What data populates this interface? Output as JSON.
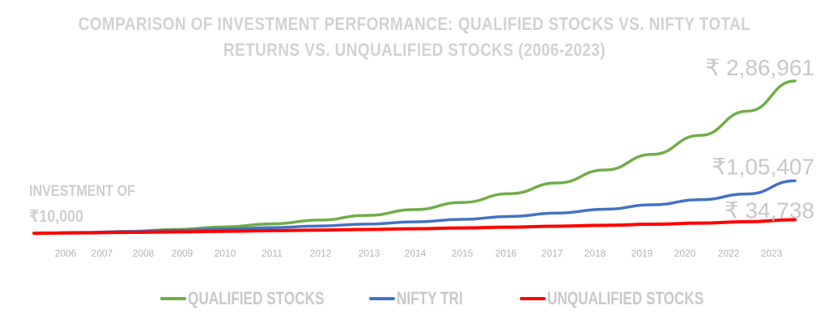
{
  "chart_data": {
    "type": "line",
    "title": "COMPARISON OF INVESTMENT PERFORMANCE: QUALIFIED STOCKS VS. NIFTY TOTAL RETURNS VS. UNQUALIFIED STOCKS (2006-2023)",
    "title_lines": [
      "COMPARISON OF INVESTMENT PERFORMANCE: QUALIFIED STOCKS VS. NIFTY TOTAL",
      "RETURNS VS. UNQUALIFIED STOCKS (2006-2023)"
    ],
    "xlabel": "",
    "ylabel": "",
    "categories": [
      "2006",
      "2007",
      "2008",
      "2009",
      "2010",
      "2011",
      "2012",
      "2013",
      "2014",
      "2015",
      "2016",
      "2017",
      "2018",
      "2019",
      "2020",
      "2022",
      "2023"
    ],
    "series": [
      {
        "name": "QUALIFIED STOCKS",
        "color": "#70ad47",
        "values": [
          10000,
          11000,
          13500,
          17000,
          21500,
          27000,
          34000,
          42500,
          53000,
          66000,
          82000,
          101500,
          125000,
          153500,
          188000,
          232000,
          286961
        ],
        "end_label": "₹ 2,86,961"
      },
      {
        "name": "NIFTY TRI",
        "color": "#4472c4",
        "values": [
          10000,
          11500,
          13300,
          15300,
          17600,
          20200,
          23200,
          26700,
          30700,
          35300,
          40600,
          46700,
          53700,
          61800,
          71000,
          81500,
          105407
        ],
        "end_label": "₹1,05,407"
      },
      {
        "name": "UNQUALIFIED STOCKS",
        "color": "#ff0000",
        "values": [
          10000,
          10800,
          11700,
          12600,
          13600,
          14700,
          15800,
          17000,
          18300,
          19700,
          21200,
          22800,
          24500,
          26400,
          28500,
          31000,
          34738
        ],
        "end_label": "₹ 34,738"
      }
    ],
    "ylim": [
      0,
      300000
    ],
    "grid": false,
    "legend_position": "bottom",
    "annotation_lines": [
      "INVESTMENT OF",
      "₹10,000"
    ]
  }
}
